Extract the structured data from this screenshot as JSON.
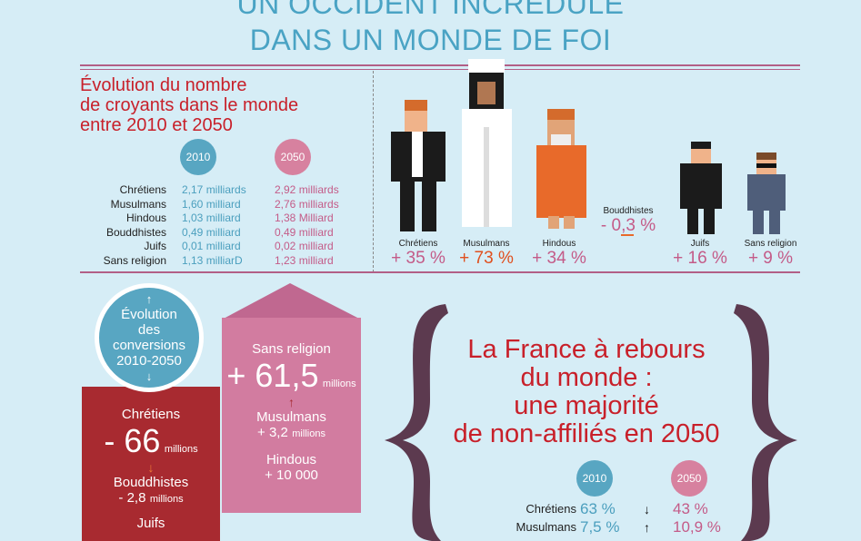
{
  "header": {
    "line1": "UN OCCIDENT INCRÉDULE",
    "line2": "DANS UN MONDE DE FOI"
  },
  "evolution": {
    "title_lines": [
      "Évolution du nombre",
      "de croyants dans le monde",
      "entre 2010 et 2050"
    ],
    "year_a": "2010",
    "year_b": "2050",
    "rows": [
      {
        "label": "Chrétiens",
        "v2010": "2,17 milliards",
        "v2050": "2,92 milliards"
      },
      {
        "label": "Musulmans",
        "v2010": "1,60 milliard",
        "v2050": "2,76 milliards"
      },
      {
        "label": "Hindous",
        "v2010": "1,03 milliard",
        "v2050": "1,38 Milliard"
      },
      {
        "label": "Bouddhistes",
        "v2010": "0,49 milliard",
        "v2050": "0,49 milliard"
      },
      {
        "label": "Juifs",
        "v2010": "0,01 milliard",
        "v2050": "0,02 milliard"
      },
      {
        "label": "Sans religion",
        "v2010": "1,13 milliarD",
        "v2050": "1,23 milliard"
      }
    ]
  },
  "figures": [
    {
      "label": "Chrétiens",
      "change": "+ 35 %"
    },
    {
      "label": "Musulmans",
      "change": "+ 73 %"
    },
    {
      "label": "Hindous",
      "change": "+ 34 %"
    },
    {
      "label": "Bouddhistes",
      "change": "- 0,3 %"
    },
    {
      "label": "Juifs",
      "change": "+ 16 %"
    },
    {
      "label": "Sans religion",
      "change": "+ 9 %"
    }
  ],
  "conversions": {
    "circle_lines": [
      "Évolution",
      "des",
      "conversions",
      "2010-2050"
    ],
    "losses": [
      {
        "label": "Chrétiens",
        "value": "- 66",
        "unit": "millions"
      },
      {
        "label": "Bouddhistes",
        "value": "- 2,8",
        "unit": "millions"
      },
      {
        "label": "Juifs",
        "value": "",
        "unit": ""
      }
    ],
    "gains": [
      {
        "label": "Sans religion",
        "value": "+ 61,5",
        "unit": "millions"
      },
      {
        "label": "Musulmans",
        "value": "+ 3,2",
        "unit": "millions"
      },
      {
        "label": "Hindous",
        "value": "+ 10 000",
        "unit": ""
      }
    ]
  },
  "france": {
    "title_lines": [
      "La France à rebours",
      "du monde :",
      "une majorité",
      "de non-affiliés en 2050"
    ],
    "year_a": "2010",
    "year_b": "2050",
    "rows": [
      {
        "label": "Chrétiens",
        "v2010": "63 %",
        "trend": "↓",
        "v2050": "43 %"
      },
      {
        "label": "Musulmans",
        "v2010": "7,5 %",
        "trend": "↑",
        "v2050": "10,9 %"
      }
    ]
  },
  "colors": {
    "accent_red": "#c8202a",
    "blue": "#58a6c2",
    "pink": "#d7819f",
    "dark_red": "#a82a30",
    "background": "#d6edf6"
  }
}
